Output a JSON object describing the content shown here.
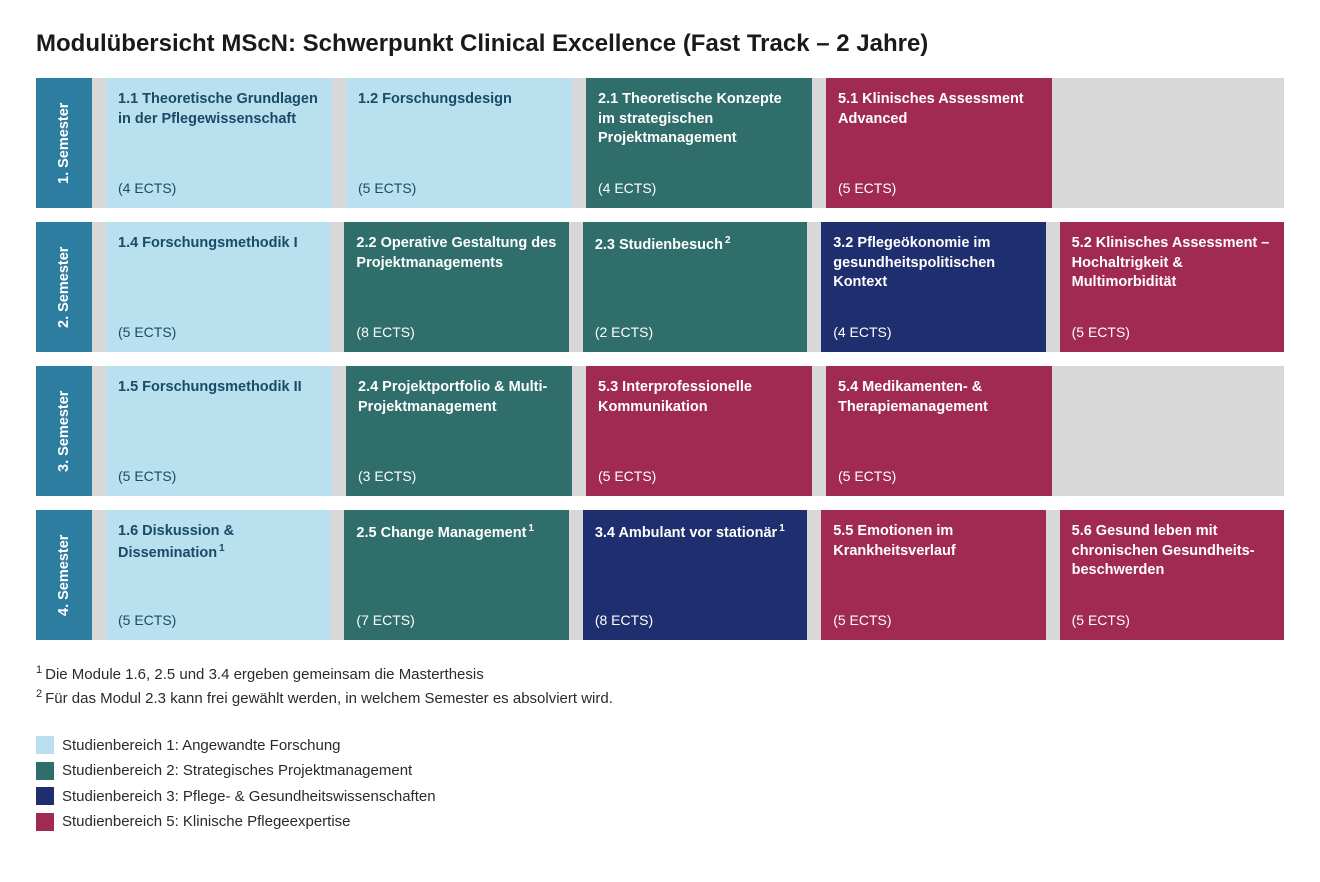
{
  "title": "Modulübersicht MScN: Schwerpunkt Clinical Excellence (Fast Track – 2 Jahre)",
  "colors": {
    "sem_header": "#2c7da0",
    "area1_bg": "#b8e0ee",
    "area1_text": "#1a4a66",
    "area2_bg": "#2f6e6b",
    "area2_text": "#ffffff",
    "area3_bg": "#1e2e6e",
    "area3_text": "#ffffff",
    "area5_bg": "#a02a52",
    "area5_text": "#ffffff",
    "row_bg": "#d8d8d8"
  },
  "semesters": [
    {
      "label": "1. Semester",
      "modules": [
        {
          "area": 1,
          "title": "1.1 Theoretische Grundlagen in der Pflegewissenschaft",
          "ects": "(4 ECTS)"
        },
        {
          "area": 1,
          "title": "1.2 Forschungsdesign",
          "ects": "(5 ECTS)"
        },
        {
          "area": 2,
          "title": "2.1 Theoretische Konzepte im strategischen Projektmanagement",
          "ects": "(4 ECTS)"
        },
        {
          "area": 5,
          "title": "5.1 Klinisches Assessment Advanced",
          "ects": "(5 ECTS)"
        }
      ]
    },
    {
      "label": "2. Semester",
      "modules": [
        {
          "area": 1,
          "title": "1.4 Forschungs­methodik I",
          "ects": "(5 ECTS)"
        },
        {
          "area": 2,
          "title": "2.2 Operative Gestaltung des Projektmanagements",
          "ects": "(8 ECTS)"
        },
        {
          "area": 2,
          "title": "2.3 Studienbesuch",
          "sup": "2",
          "ects": "(2 ECTS)"
        },
        {
          "area": 3,
          "title": "3.2 Pflegeökonomie im gesundheits­politischen Kontext",
          "ects": "(4 ECTS)"
        },
        {
          "area": 5,
          "title": "5.2 Klinisches Assessment – Hochaltrigkeit & Multimorbidität",
          "ects": "(5 ECTS)"
        }
      ]
    },
    {
      "label": "3. Semester",
      "modules": [
        {
          "area": 1,
          "title": "1.5 Forschungs­methodik II",
          "ects": "(5 ECTS)"
        },
        {
          "area": 2,
          "title": "2.4 Projektportfolio & Multi-Projekt­management",
          "ects": "(3 ECTS)"
        },
        {
          "area": 5,
          "title": "5.3 Interprofessio­nelle Kommunikation",
          "ects": "(5 ECTS)"
        },
        {
          "area": 5,
          "title": "5.4 Medikamenten- & Therapiemanagement",
          "ects": "(5 ECTS)"
        }
      ]
    },
    {
      "label": "4. Semester",
      "modules": [
        {
          "area": 1,
          "title": "1.6 Diskussion & Dissemination",
          "sup": "1",
          "ects": "(5 ECTS)"
        },
        {
          "area": 2,
          "title": "2.5 Change Management",
          "sup": "1",
          "ects": "(7 ECTS)"
        },
        {
          "area": 3,
          "title": "3.4 Ambulant vor stationär",
          "sup": "1",
          "ects": "(8 ECTS)"
        },
        {
          "area": 5,
          "title": "5.5 Emotionen im Krankheitsverlauf",
          "ects": "(5 ECTS)"
        },
        {
          "area": 5,
          "title": "5.6 Gesund leben mit chronischen Gesundheits­beschwerden",
          "ects": "(5 ECTS)"
        }
      ]
    }
  ],
  "footnotes": [
    {
      "sup": "1",
      "text": "Die Module 1.6, 2.5 und 3.4 ergeben gemeinsam die Masterthesis"
    },
    {
      "sup": "2",
      "text": "Für das Modul 2.3 kann frei gewählt werden, in welchem Semester es absolviert wird."
    }
  ],
  "legend": [
    {
      "area": 1,
      "label": "Studienbereich 1: Angewandte Forschung"
    },
    {
      "area": 2,
      "label": "Studienbereich 2: Strategisches Projektmanagement"
    },
    {
      "area": 3,
      "label": "Studienbereich 3: Pflege- & Gesundheitswissenschaften"
    },
    {
      "area": 5,
      "label": "Studienbereich 5: Klinische Pflegeexpertise"
    }
  ]
}
